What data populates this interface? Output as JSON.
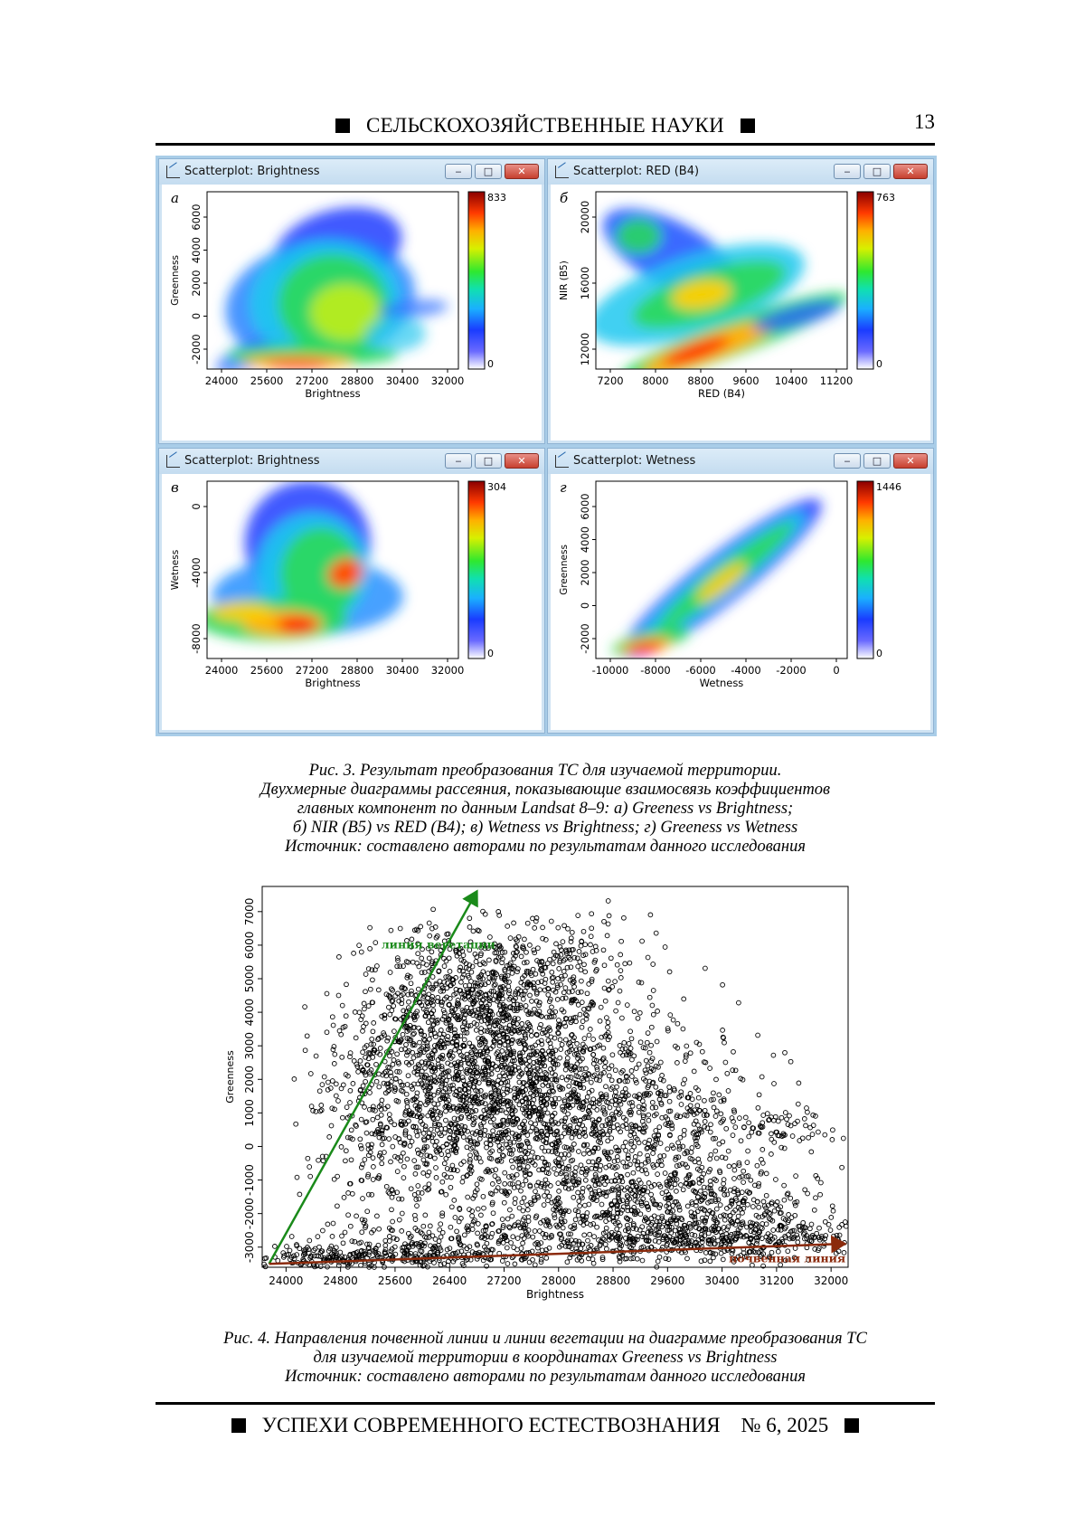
{
  "header": {
    "journal_section": "СЕЛЬСКОХОЗЯЙСТВЕННЫЕ НАУКИ",
    "page_number": "13"
  },
  "figure3": {
    "panels": [
      {
        "window_title": "Scatterplot: Brightness",
        "letter": "а",
        "chart_data": {
          "type": "heatmap",
          "xlabel": "Brightness",
          "ylabel": "Greenness",
          "xticks": [
            "24000",
            "25600",
            "27200",
            "28800",
            "30400",
            "32000"
          ],
          "yticks": [
            "-2000",
            "0",
            "2000",
            "4000",
            "6000"
          ],
          "colorbar_max": "833",
          "colorbar_min": "0"
        }
      },
      {
        "window_title": "Scatterplot: RED (B4)",
        "letter": "б",
        "chart_data": {
          "type": "heatmap",
          "xlabel": "RED (B4)",
          "ylabel": "NIR (B5)",
          "xticks": [
            "7200",
            "8000",
            "8800",
            "9600",
            "10400",
            "11200"
          ],
          "yticks": [
            "12000",
            "16000",
            "20000"
          ],
          "colorbar_max": "763",
          "colorbar_min": "0"
        }
      },
      {
        "window_title": "Scatterplot: Brightness",
        "letter": "в",
        "chart_data": {
          "type": "heatmap",
          "xlabel": "Brightness",
          "ylabel": "Wetness",
          "xticks": [
            "24000",
            "25600",
            "27200",
            "28800",
            "30400",
            "32000"
          ],
          "yticks": [
            "-8000",
            "-4000",
            "0"
          ],
          "colorbar_max": "304",
          "colorbar_min": "0"
        }
      },
      {
        "window_title": "Scatterplot: Wetness",
        "letter": "г",
        "chart_data": {
          "type": "heatmap",
          "xlabel": "Wetness",
          "ylabel": "Greenness",
          "xticks": [
            "-10000",
            "-8000",
            "-6000",
            "-4000",
            "-2000",
            "0"
          ],
          "yticks": [
            "-2000",
            "0",
            "2000",
            "4000",
            "6000"
          ],
          "colorbar_max": "1446",
          "colorbar_min": "0"
        }
      }
    ],
    "caption": [
      "Рис. 3. Результат преобразования ТС для изучаемой территории.",
      "Двухмерные диаграммы рассеяния, показывающие взаимосвязь коэффициентов",
      "главных компонент по данным Landsat 8–9: а) Greeness vs Brightness;",
      "б) NIR (B5) vs RED (B4); в) Wetness vs Brightness; г) Greeness vs Wetness",
      "Источник: составлено авторами по результатам данного исследования"
    ]
  },
  "figure4": {
    "chart_data": {
      "type": "scatter",
      "xlabel": "Brightness",
      "ylabel": "Greenness",
      "xticks": [
        24000,
        24800,
        25600,
        26400,
        27200,
        28000,
        28800,
        29600,
        30400,
        31200,
        32000
      ],
      "yticks": [
        -3000,
        -2000,
        -1000,
        0,
        1000,
        2000,
        3000,
        4000,
        5000,
        6000,
        7000
      ],
      "xlim": [
        23650,
        32250
      ],
      "ylim": [
        -3600,
        7750
      ],
      "annotations": [
        {
          "label": "линия вегетации",
          "color": "#1a8a1a",
          "from": [
            23750,
            -3500
          ],
          "to": [
            26800,
            7600
          ]
        },
        {
          "label": "почвенная линия",
          "color": "#8b2a0c",
          "from": [
            23750,
            -3500
          ],
          "to": [
            32200,
            -2900
          ]
        }
      ]
    },
    "caption": [
      "Рис. 4. Направления почвенной линии и линии вегетации на диаграмме преобразования ТС",
      "для изучаемой территории в координатах Greeness vs Brightness",
      "Источник: составлено авторами по результатам данного исследования"
    ]
  },
  "footer": {
    "journal": "УСПЕХИ СОВРЕМЕННОГО ЕСТЕСТВОЗНАНИЯ",
    "issue": "№ 6, 2025"
  }
}
